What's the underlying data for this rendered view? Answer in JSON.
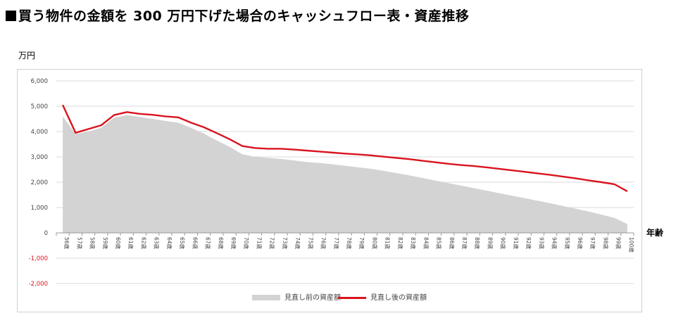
{
  "title": "買う物件の金額を 300 万円下げた場合のキャッシュフロー表・資産推移",
  "chart_data": {
    "type": "area",
    "ylabel": "万円",
    "xlabel": "年齢",
    "ylim": [
      -2000,
      6000
    ],
    "yticks": [
      -2000,
      -1000,
      0,
      1000,
      2000,
      3000,
      4000,
      5000,
      6000
    ],
    "ytick_labels": [
      "-2,000",
      "-1,000",
      "0",
      "1,000",
      "2,000",
      "3,000",
      "4,000",
      "5,000",
      "6,000"
    ],
    "grid": true,
    "legend_position": "bottom",
    "categories": [
      "56歳",
      "57歳",
      "58歳",
      "59歳",
      "60歳",
      "61歳",
      "62歳",
      "63歳",
      "64歳",
      "65歳",
      "66歳",
      "67歳",
      "68歳",
      "69歳",
      "70歳",
      "71歳",
      "72歳",
      "73歳",
      "74歳",
      "75歳",
      "76歳",
      "77歳",
      "78歳",
      "79歳",
      "80歳",
      "81歳",
      "82歳",
      "83歳",
      "84歳",
      "85歳",
      "86歳",
      "87歳",
      "88歳",
      "89歳",
      "90歳",
      "91歳",
      "92歳",
      "93歳",
      "94歳",
      "95歳",
      "96歳",
      "97歳",
      "98歳",
      "99歳",
      "100歳"
    ],
    "series": [
      {
        "name": "見直し前の資産額",
        "kind": "area",
        "color": "#d3d3d3",
        "values": [
          4600,
          3900,
          4000,
          4150,
          4550,
          4650,
          4580,
          4500,
          4420,
          4350,
          4150,
          3920,
          3650,
          3400,
          3100,
          3000,
          2960,
          2920,
          2860,
          2800,
          2760,
          2710,
          2650,
          2590,
          2530,
          2450,
          2360,
          2270,
          2170,
          2070,
          1970,
          1870,
          1770,
          1670,
          1570,
          1470,
          1370,
          1270,
          1170,
          1060,
          950,
          840,
          720,
          590,
          350
        ]
      },
      {
        "name": "見直し後の資産額",
        "kind": "line",
        "color": "#d9141f",
        "values": [
          5050,
          3950,
          4100,
          4250,
          4650,
          4770,
          4700,
          4660,
          4600,
          4560,
          4350,
          4170,
          3940,
          3700,
          3430,
          3350,
          3320,
          3320,
          3290,
          3250,
          3210,
          3170,
          3130,
          3100,
          3060,
          3010,
          2960,
          2910,
          2850,
          2790,
          2730,
          2680,
          2640,
          2590,
          2530,
          2470,
          2410,
          2350,
          2290,
          2220,
          2150,
          2070,
          2000,
          1920,
          1640
        ]
      }
    ]
  }
}
